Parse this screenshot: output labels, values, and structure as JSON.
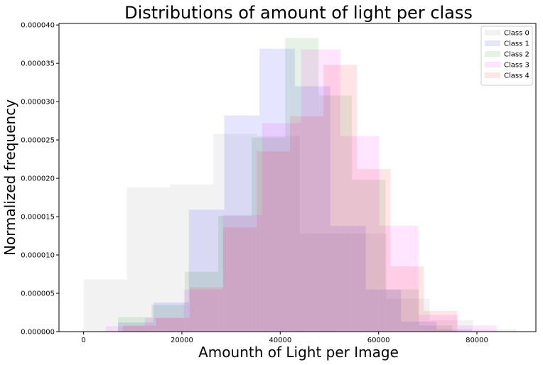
{
  "chart_data": {
    "type": "histogram",
    "title": "Distributions of amount of light per class",
    "xlabel": "Amounth of Light per Image",
    "ylabel": "Normalized frequency",
    "xlim": [
      -5000,
      92000
    ],
    "ylim": [
      0,
      4.02e-05
    ],
    "xticks": [
      0,
      20000,
      40000,
      60000,
      80000
    ],
    "xtick_labels": [
      "0",
      "20000",
      "40000",
      "60000",
      "80000"
    ],
    "yticks": [
      0,
      5e-06,
      1e-05,
      1.5e-05,
      2e-05,
      2.5e-05,
      3e-05,
      3.5e-05,
      4e-05
    ],
    "ytick_labels": [
      "0.000000",
      "0.000005",
      "0.000010",
      "0.000015",
      "0.000020",
      "0.000025",
      "0.000030",
      "0.000035",
      "0.000040"
    ],
    "grid": false,
    "legend_position": "top-right",
    "alpha": 0.1,
    "series": [
      {
        "name": "Class 0",
        "color": "#808080",
        "edges": [
          0,
          8800,
          17600,
          26400,
          35200,
          44000,
          52800,
          61600,
          70400,
          79200,
          88000
        ],
        "values": [
          6.8e-06,
          1.88e-05,
          1.92e-05,
          2.58e-05,
          2.55e-05,
          1.28e-05,
          1.28e-05,
          4.3e-06,
          1.5e-06,
          3e-07
        ]
      },
      {
        "name": "Class 1",
        "color": "#0000ff",
        "edges": [
          7000,
          14200,
          21400,
          28600,
          35800,
          43000,
          50200,
          57400,
          64600,
          71800,
          79000
        ],
        "values": [
          1.2e-06,
          3.8e-06,
          1.59e-05,
          2.82e-05,
          3.69e-05,
          3.2e-05,
          1.38e-05,
          5.5e-06,
          1.3e-06,
          3e-07
        ]
      },
      {
        "name": "Class 2",
        "color": "#008000",
        "edges": [
          7000,
          13800,
          20600,
          27400,
          34200,
          41000,
          47800,
          54600,
          61400,
          68200,
          75000
        ],
        "values": [
          1.9e-06,
          3.5e-06,
          7.8e-06,
          1.51e-05,
          2.53e-05,
          3.83e-05,
          3.08e-05,
          1.98e-05,
          5.5e-06,
          8e-07
        ]
      },
      {
        "name": "Class 3",
        "color": "#ff00ff",
        "edges": [
          4500,
          12450,
          20400,
          28350,
          36300,
          44250,
          52200,
          60150,
          68100,
          76050,
          84000
        ],
        "values": [
          7e-07,
          1.8e-06,
          5.5e-06,
          1.52e-05,
          2.72e-05,
          3.68e-05,
          2.55e-05,
          1.38e-05,
          2.2e-06,
          8e-07
        ]
      },
      {
        "name": "Class 4",
        "color": "#ff0000",
        "edges": [
          8000,
          14800,
          21600,
          28400,
          35200,
          42000,
          48800,
          55600,
          62400,
          69200,
          76000
        ],
        "values": [
          8e-07,
          1.8e-06,
          5.8e-06,
          1.36e-05,
          2.35e-05,
          2.81e-05,
          3.48e-05,
          2.12e-05,
          8.5e-06,
          2.7e-06
        ]
      }
    ]
  }
}
